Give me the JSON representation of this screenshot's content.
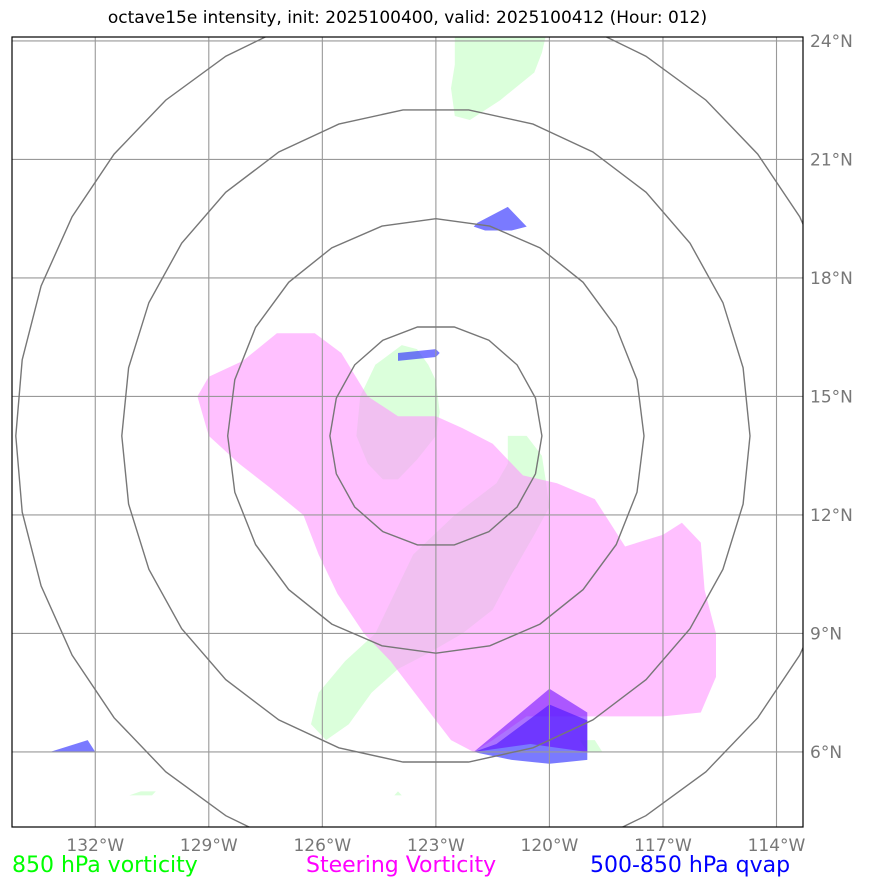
{
  "header": {
    "title": "octave15e intensity, init: 2025100400, valid: 2025100412 (Hour: 012)"
  },
  "legend": {
    "vort850": "850 hPa vorticity",
    "steering": "Steering Vorticity",
    "qvap": "500-850 hPa qvap"
  },
  "colors": {
    "vort850": "#ccffcc",
    "steering": "#ff99ff",
    "qvap": "#3333ff",
    "qvap_core": "#6600ff",
    "grid": "#999999",
    "rings": "#777777"
  },
  "chart_data": {
    "type": "map",
    "lon_range": [
      -134.2,
      -113.3
    ],
    "lat_range": [
      4.1,
      24.1
    ],
    "lon_ticks": [
      {
        "v": -132,
        "label": "132°W"
      },
      {
        "v": -129,
        "label": "129°W"
      },
      {
        "v": -126,
        "label": "126°W"
      },
      {
        "v": -123,
        "label": "123°W"
      },
      {
        "v": -120,
        "label": "120°W"
      },
      {
        "v": -117,
        "label": "117°W"
      },
      {
        "v": -114,
        "label": "114°W"
      }
    ],
    "lat_ticks": [
      {
        "v": 6,
        "label": "6°N"
      },
      {
        "v": 9,
        "label": "9°N"
      },
      {
        "v": 12,
        "label": "12°N"
      },
      {
        "v": 15,
        "label": "15°N"
      },
      {
        "v": 18,
        "label": "18°N"
      },
      {
        "v": 21,
        "label": "21°N"
      },
      {
        "v": 24,
        "label": "24°N"
      }
    ],
    "grid": true,
    "rings_center": [
      -123.0,
      14.0
    ],
    "ring_radii_deg": [
      2.8,
      5.5,
      8.3,
      11.1
    ],
    "fields": [
      {
        "name": "850 hPa vorticity",
        "color": "#ccffcc",
        "opacity": 0.7,
        "polygons": [
          [
            [
              -122.5,
              24.1
            ],
            [
              -120.1,
              24.1
            ],
            [
              -120.2,
              23.7
            ],
            [
              -120.4,
              23.2
            ],
            [
              -121.3,
              22.5
            ],
            [
              -122.1,
              22.0
            ],
            [
              -122.5,
              22.1
            ],
            [
              -122.6,
              22.8
            ],
            [
              -122.5,
              23.4
            ]
          ],
          [
            [
              -123.9,
              16.3
            ],
            [
              -123.5,
              16.2
            ],
            [
              -123.2,
              15.8
            ],
            [
              -123.0,
              15.4
            ],
            [
              -122.9,
              14.6
            ],
            [
              -123.0,
              14.0
            ],
            [
              -123.5,
              13.4
            ],
            [
              -124.0,
              12.9
            ],
            [
              -124.4,
              12.9
            ],
            [
              -124.8,
              13.3
            ],
            [
              -125.1,
              14.0
            ],
            [
              -125.0,
              15.0
            ],
            [
              -124.6,
              15.8
            ]
          ],
          [
            [
              -121.1,
              14.0
            ],
            [
              -120.6,
              14.0
            ],
            [
              -120.2,
              13.5
            ],
            [
              -120.1,
              12.9
            ],
            [
              -120.0,
              12.2
            ],
            [
              -120.4,
              11.5
            ],
            [
              -121.0,
              10.5
            ],
            [
              -121.5,
              9.6
            ],
            [
              -122.3,
              9.0
            ],
            [
              -123.2,
              8.5
            ],
            [
              -124.0,
              8.1
            ],
            [
              -124.7,
              7.5
            ],
            [
              -125.3,
              6.7
            ],
            [
              -125.9,
              6.3
            ],
            [
              -126.3,
              6.7
            ],
            [
              -126.1,
              7.5
            ],
            [
              -125.4,
              8.3
            ],
            [
              -124.6,
              9.0
            ],
            [
              -124.1,
              10.0
            ],
            [
              -123.6,
              11.0
            ],
            [
              -122.5,
              12.0
            ],
            [
              -121.4,
              12.8
            ],
            [
              -121.1,
              13.3
            ]
          ],
          [
            [
              -118.8,
              6.3
            ],
            [
              -119.2,
              6.3
            ],
            [
              -119.0,
              6.0
            ],
            [
              -118.6,
              6.0
            ]
          ],
          [
            [
              -130.8,
              5.0
            ],
            [
              -131.1,
              4.9
            ],
            [
              -130.5,
              4.9
            ],
            [
              -130.4,
              5.0
            ]
          ],
          [
            [
              -124.0,
              5.0
            ],
            [
              -124.1,
              4.9
            ],
            [
              -123.9,
              4.9
            ]
          ]
        ]
      },
      {
        "name": "Steering Vorticity",
        "color": "#ff99ff",
        "opacity": 0.62,
        "polygons": [
          [
            [
              -129.3,
              15.0
            ],
            [
              -129.0,
              15.5
            ],
            [
              -128.1,
              15.9
            ],
            [
              -127.2,
              16.6
            ],
            [
              -126.2,
              16.6
            ],
            [
              -125.5,
              16.1
            ],
            [
              -124.8,
              15.0
            ],
            [
              -124.0,
              14.5
            ],
            [
              -123.0,
              14.5
            ],
            [
              -122.3,
              14.2
            ],
            [
              -121.5,
              13.8
            ],
            [
              -120.7,
              13.0
            ],
            [
              -119.8,
              12.8
            ],
            [
              -118.8,
              12.4
            ],
            [
              -118.4,
              11.8
            ],
            [
              -118.0,
              11.2
            ],
            [
              -117.0,
              11.5
            ],
            [
              -116.5,
              11.8
            ],
            [
              -116.0,
              11.3
            ],
            [
              -115.9,
              10.1
            ],
            [
              -115.6,
              9.0
            ],
            [
              -115.6,
              7.9
            ],
            [
              -116.0,
              7.0
            ],
            [
              -117.0,
              6.9
            ],
            [
              -118.0,
              6.9
            ],
            [
              -119.0,
              6.9
            ],
            [
              -120.0,
              6.9
            ],
            [
              -120.6,
              6.9
            ],
            [
              -121.5,
              6.3
            ],
            [
              -122.0,
              6.0
            ],
            [
              -122.6,
              6.3
            ],
            [
              -123.4,
              7.3
            ],
            [
              -124.2,
              8.3
            ],
            [
              -124.9,
              9.0
            ],
            [
              -125.6,
              10.0
            ],
            [
              -126.1,
              11.0
            ],
            [
              -126.5,
              12.0
            ],
            [
              -127.4,
              12.7
            ],
            [
              -128.2,
              13.3
            ],
            [
              -129.0,
              14.0
            ]
          ]
        ]
      },
      {
        "name": "500-850 hPa qvap",
        "color": "#3333ff",
        "opacity": 0.65,
        "polygons": [
          [
            [
              -121.9,
              19.4
            ],
            [
              -121.1,
              19.8
            ],
            [
              -120.6,
              19.3
            ],
            [
              -121.0,
              19.2
            ],
            [
              -121.7,
              19.2
            ],
            [
              -122.0,
              19.3
            ]
          ],
          [
            [
              -124.0,
              16.1
            ],
            [
              -123.0,
              16.2
            ],
            [
              -122.9,
              16.1
            ],
            [
              -123.0,
              16.0
            ],
            [
              -124.0,
              15.9
            ]
          ],
          [
            [
              -122.0,
              6.0
            ],
            [
              -121.4,
              6.2
            ],
            [
              -120.0,
              7.2
            ],
            [
              -119.0,
              6.8
            ],
            [
              -119.0,
              5.8
            ],
            [
              -120.0,
              5.7
            ],
            [
              -121.0,
              5.8
            ]
          ],
          [
            [
              -133.2,
              6.0
            ],
            [
              -132.2,
              6.3
            ],
            [
              -132.0,
              6.0
            ]
          ]
        ]
      },
      {
        "name": "qvap core",
        "color": "#6600ff",
        "opacity": 0.55,
        "polygons": [
          [
            [
              -122.0,
              6.0
            ],
            [
              -120.0,
              7.6
            ],
            [
              -119.0,
              7.0
            ],
            [
              -119.0,
              6.0
            ],
            [
              -120.5,
              6.2
            ]
          ]
        ]
      }
    ]
  }
}
